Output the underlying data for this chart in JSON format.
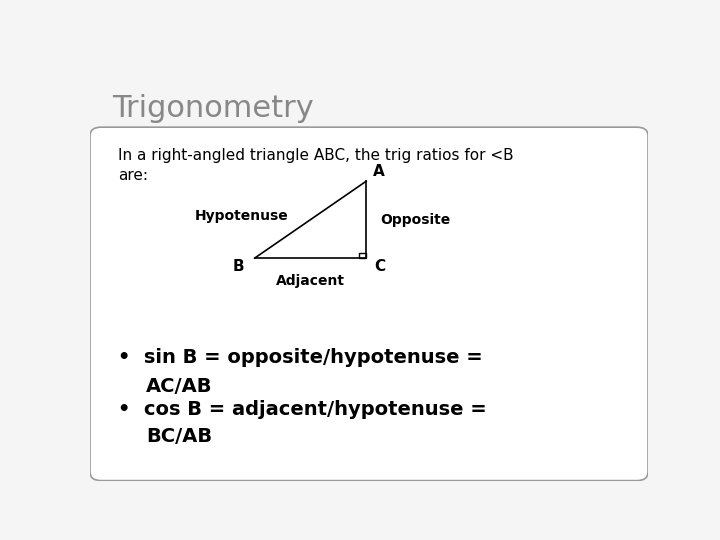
{
  "title": "Trigonometry",
  "title_color": "#888888",
  "title_fontsize": 22,
  "bg_color": "#f5f5f5",
  "box_color": "#ffffff",
  "box_edge_color": "#999999",
  "intro_text": "In a right-angled triangle ABC, the trig ratios for <B\nare:",
  "vertex_B": [
    0.295,
    0.535
  ],
  "vertex_C": [
    0.495,
    0.535
  ],
  "vertex_A": [
    0.495,
    0.72
  ],
  "label_A": "A",
  "label_B": "B",
  "label_C": "C",
  "label_hypotenuse": "Hypotenuse",
  "label_opposite": "Opposite",
  "label_adjacent": "Adjacent",
  "bullet1_line1": "•  sin B = opposite/hypotenuse =",
  "bullet1_line2": "   AC/AB",
  "bullet2_line1": "•  cos B = adjacent/hypotenuse =",
  "bullet2_line2": "   BC/AB",
  "font_family": "DejaVu Sans",
  "triangle_color": "#000000",
  "text_color": "#000000",
  "intro_fontsize": 11,
  "label_fontsize": 11,
  "side_label_fontsize": 10,
  "bullet_fontsize": 14
}
